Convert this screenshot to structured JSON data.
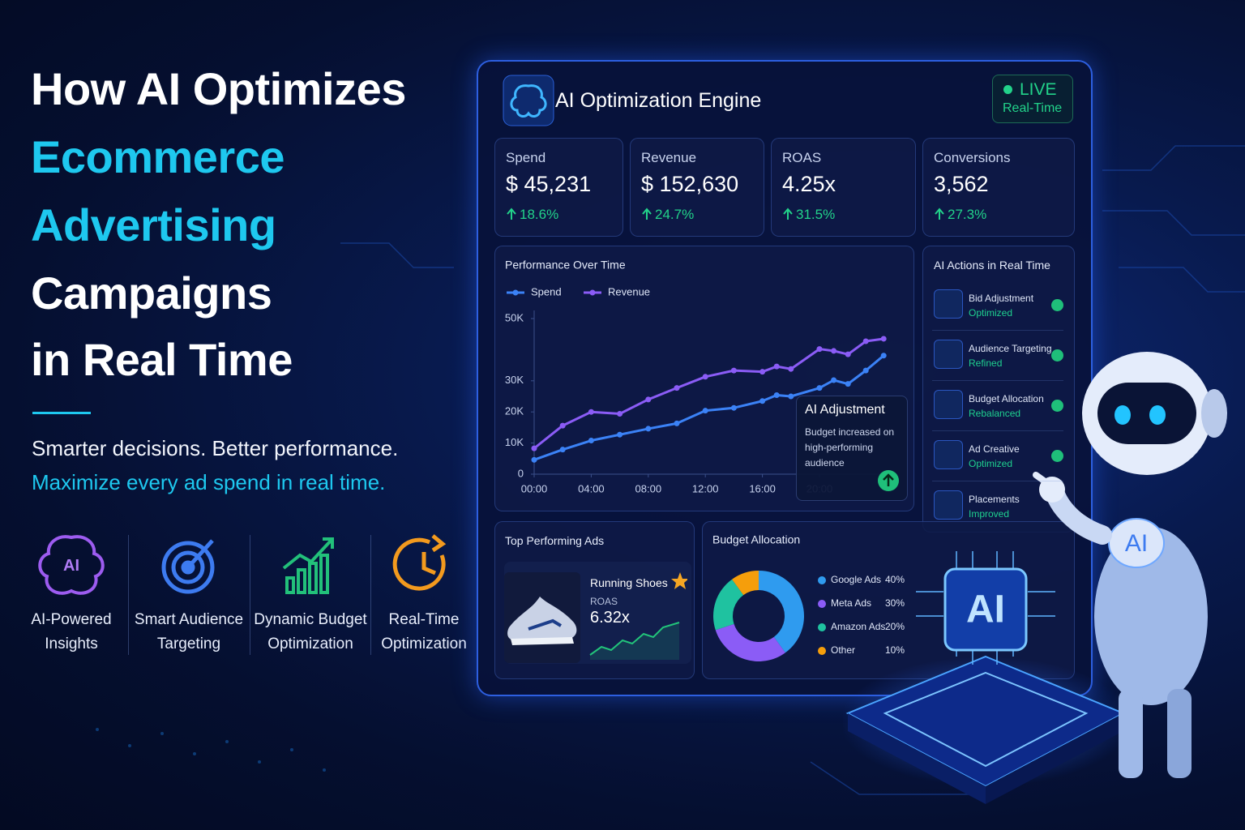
{
  "headline": {
    "line1": "How AI Optimizes",
    "line2": "Ecommerce",
    "line3": "Advertising",
    "line4": "Campaigns",
    "line5": "in Real Time"
  },
  "subheadline": {
    "line1": "Smarter decisions. Better performance.",
    "line2": "Maximize every ad spend in real time."
  },
  "features": [
    {
      "icon_text": "AI",
      "label_lines": [
        "AI-Powered",
        "Insights"
      ]
    },
    {
      "label_lines": [
        "Smart Audience",
        "Targeting"
      ]
    },
    {
      "label_lines": [
        "Dynamic Budget",
        "Optimization"
      ]
    },
    {
      "label_lines": [
        "Real-Time",
        "Optimization"
      ]
    }
  ],
  "dashboard": {
    "title": "AI Optimization Engine",
    "status": "LIVE",
    "status_sub": "Real-Time",
    "kpis": [
      {
        "label": "Spend",
        "value": "$ 45,231",
        "change": "18.6%"
      },
      {
        "label": "Revenue",
        "value": "$ 152,630",
        "change": "24.7%"
      },
      {
        "label": "ROAS",
        "value": "4.25x",
        "change": "31.5%"
      },
      {
        "label": "Conversions",
        "value": "3,562",
        "change": "27.3%"
      }
    ],
    "tooltip": {
      "title": "AI Adjustment",
      "text": "Budget increased on high-performing audience"
    },
    "actions_title": "AI Actions in Real Time",
    "actions": [
      {
        "name": "Bid Adjustment",
        "status": "Optimized"
      },
      {
        "name": "Audience Targeting",
        "status": "Refined"
      },
      {
        "name": "Budget Allocation",
        "status": "Rebalanced"
      },
      {
        "name": "Ad Creative",
        "status": "Optimized"
      },
      {
        "name": "Placements",
        "status": "Improved"
      }
    ],
    "top_ads": {
      "title": "Top Performing Ads",
      "product": "Running Shoes",
      "metric_label": "ROAS",
      "metric_value": "6.32x"
    }
  },
  "chip_label": "AI",
  "robot_badge": "AI",
  "chart_data": [
    {
      "type": "line",
      "title": "Performance Over Time",
      "x": [
        0,
        2,
        4,
        6,
        8,
        10,
        12,
        14,
        16,
        17,
        18,
        20,
        21,
        22,
        23.25,
        24.5
      ],
      "xlim": [
        0,
        25
      ],
      "xticks": [
        {
          "value": 0,
          "label": "00:00"
        },
        {
          "value": 4,
          "label": "04:00"
        },
        {
          "value": 8,
          "label": "08:00"
        },
        {
          "value": 12,
          "label": "12:00"
        },
        {
          "value": 16,
          "label": "16:00"
        },
        {
          "value": 20,
          "label": "20:00"
        }
      ],
      "ylim": [
        0,
        50000
      ],
      "yticks": [
        0,
        {
          "value": 10000,
          "label": "10K"
        },
        {
          "value": 20000,
          "label": "20K"
        },
        {
          "value": 30000,
          "label": "30K"
        },
        {
          "value": 50000,
          "label": "50K"
        }
      ],
      "grid": false,
      "series": [
        {
          "name": "Spend",
          "color": "#3b82f6",
          "values": [
            4600,
            7900,
            10800,
            12700,
            14600,
            16300,
            20400,
            21300,
            23500,
            25400,
            25000,
            27700,
            30200,
            29000,
            33300,
            38100
          ]
        },
        {
          "name": "Revenue",
          "color": "#8b5cf6",
          "values": [
            8300,
            15600,
            20000,
            19400,
            24000,
            27700,
            31300,
            33300,
            32900,
            34600,
            33800,
            40200,
            39600,
            38500,
            42700,
            43500
          ]
        }
      ]
    },
    {
      "type": "pie",
      "title": "Budget Allocation",
      "categories": [
        "Google Ads",
        "Meta Ads",
        "Amazon Ads",
        "Other"
      ],
      "values": [
        40,
        30,
        20,
        10
      ],
      "value_labels": [
        "40%",
        "30%",
        "20%",
        "10%"
      ],
      "colors": [
        "#2f9bef",
        "#8b5cf6",
        "#1fc2a0",
        "#f59e0b"
      ]
    }
  ]
}
